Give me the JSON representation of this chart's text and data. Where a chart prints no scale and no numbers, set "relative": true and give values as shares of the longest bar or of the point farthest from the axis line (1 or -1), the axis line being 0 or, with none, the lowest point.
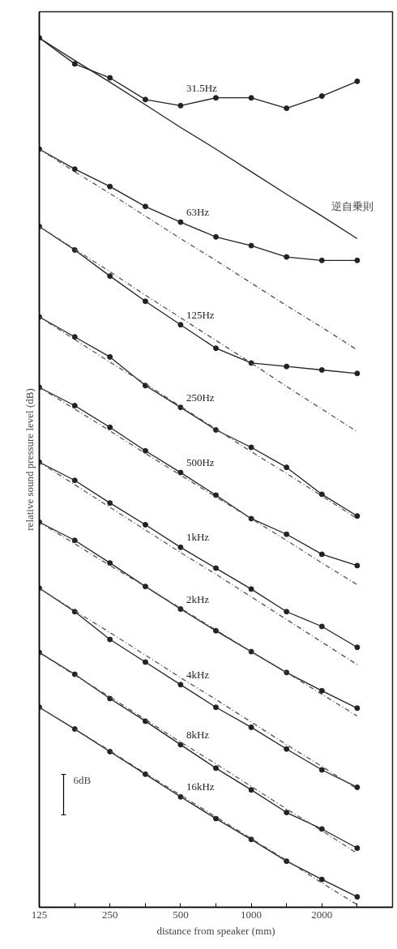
{
  "chart_data": {
    "type": "line",
    "relative": true,
    "xlabel": "distance from speaker (mm)",
    "ylabel": "relative sound pressure level (dB)",
    "log": "x",
    "grid": false,
    "marker": "circle",
    "line_style": "solid",
    "tick_labels": "x",
    "x": [
      125,
      177,
      250,
      354,
      500,
      707,
      1000,
      1414,
      2000,
      2828
    ],
    "xlim": [
      125,
      4000
    ],
    "xticks": [
      125,
      {
        "value": 177,
        "label": null
      },
      250,
      {
        "value": 354,
        "label": null
      },
      500,
      {
        "value": 707,
        "label": null
      },
      1000,
      {
        "value": 1414,
        "label": null
      },
      2000,
      {
        "value": 2828,
        "label": null
      }
    ],
    "series": [
      {
        "name": "31.5Hz",
        "color": "#222222",
        "values": [
          1.0,
          0.97,
          0.954,
          0.929,
          0.922,
          0.931,
          0.931,
          0.919,
          0.933,
          0.95
        ]
      },
      {
        "color": "#222222",
        "type": "line",
        "marker": "none",
        "values": [
          1.0,
          0.974,
          0.949,
          0.923,
          0.897,
          0.872,
          0.846,
          0.82,
          0.795,
          0.769
        ]
      },
      {
        "name": "63Hz",
        "color": "#222222",
        "values": [
          0.872,
          0.849,
          0.829,
          0.806,
          0.788,
          0.771,
          0.761,
          0.748,
          0.744,
          0.744
        ]
      },
      {
        "color": "#555555",
        "type": "line",
        "marker": "none",
        "line_style": "dashed",
        "values": [
          0.872,
          0.846,
          0.821,
          0.795,
          0.769,
          0.744,
          0.718,
          0.692,
          0.667,
          0.641
        ]
      },
      {
        "name": "125Hz",
        "color": "#222222",
        "values": [
          0.783,
          0.756,
          0.726,
          0.697,
          0.67,
          0.643,
          0.626,
          0.622,
          0.618,
          0.614
        ]
      },
      {
        "color": "#555555",
        "type": "line",
        "marker": "none",
        "line_style": "dashed",
        "values": [
          0.783,
          0.757,
          0.731,
          0.704,
          0.678,
          0.652,
          0.626,
          0.599,
          0.573,
          0.547
        ]
      },
      {
        "name": "250Hz",
        "color": "#222222",
        "values": [
          0.679,
          0.656,
          0.633,
          0.6,
          0.575,
          0.549,
          0.529,
          0.506,
          0.475,
          0.45
        ]
      },
      {
        "color": "#555555",
        "type": "line",
        "marker": "none",
        "line_style": "dashed",
        "values": [
          0.679,
          0.653,
          0.627,
          0.602,
          0.576,
          0.55,
          0.524,
          0.499,
          0.473,
          0.447
        ]
      },
      {
        "name": "500Hz",
        "color": "#222222",
        "values": [
          0.598,
          0.577,
          0.552,
          0.525,
          0.5,
          0.474,
          0.447,
          0.429,
          0.406,
          0.393
        ]
      },
      {
        "color": "#555555",
        "type": "line",
        "marker": "none",
        "line_style": "dashed",
        "values": [
          0.598,
          0.573,
          0.548,
          0.522,
          0.497,
          0.472,
          0.447,
          0.422,
          0.396,
          0.371
        ]
      },
      {
        "name": "1kHz",
        "color": "#222222",
        "values": [
          0.512,
          0.491,
          0.465,
          0.44,
          0.414,
          0.39,
          0.366,
          0.34,
          0.323,
          0.299
        ]
      },
      {
        "color": "#555555",
        "type": "line",
        "marker": "none",
        "line_style": "dashed",
        "values": [
          0.512,
          0.486,
          0.46,
          0.434,
          0.408,
          0.383,
          0.357,
          0.331,
          0.305,
          0.279
        ]
      },
      {
        "name": "2kHz",
        "color": "#222222",
        "values": [
          0.443,
          0.422,
          0.396,
          0.369,
          0.343,
          0.318,
          0.294,
          0.27,
          0.249,
          0.229
        ]
      },
      {
        "color": "#555555",
        "type": "line",
        "marker": "none",
        "line_style": "dashed",
        "values": [
          0.443,
          0.418,
          0.393,
          0.369,
          0.344,
          0.319,
          0.294,
          0.27,
          0.245,
          0.22
        ]
      },
      {
        "name": "4kHz",
        "color": "#222222",
        "values": [
          0.367,
          0.34,
          0.308,
          0.282,
          0.256,
          0.23,
          0.207,
          0.182,
          0.158,
          0.138
        ]
      },
      {
        "color": "#555555",
        "type": "line",
        "marker": "none",
        "line_style": "dashed",
        "values": [
          0.367,
          0.341,
          0.316,
          0.29,
          0.264,
          0.239,
          0.213,
          0.187,
          0.162,
          0.136
        ]
      },
      {
        "name": "8kHz",
        "color": "#222222",
        "values": [
          0.293,
          0.268,
          0.24,
          0.214,
          0.187,
          0.16,
          0.135,
          0.109,
          0.09,
          0.068
        ]
      },
      {
        "color": "#555555",
        "type": "line",
        "marker": "none",
        "line_style": "dashed",
        "values": [
          0.293,
          0.267,
          0.242,
          0.216,
          0.19,
          0.165,
          0.139,
          0.113,
          0.088,
          0.062
        ]
      },
      {
        "name": "16kHz",
        "color": "#222222",
        "values": [
          0.23,
          0.205,
          0.179,
          0.153,
          0.127,
          0.102,
          0.078,
          0.053,
          0.032,
          0.012
        ]
      },
      {
        "color": "#555555",
        "type": "line",
        "marker": "none",
        "line_style": "dashed",
        "values": [
          0.23,
          0.205,
          0.18,
          0.154,
          0.129,
          0.104,
          0.079,
          0.054,
          0.028,
          0.003
        ]
      }
    ],
    "annotations": [
      "逆自乗則",
      "6dB"
    ]
  }
}
